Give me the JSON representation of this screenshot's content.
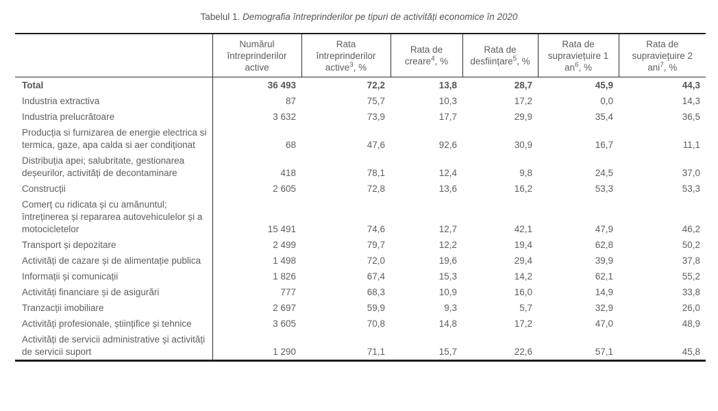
{
  "title": {
    "prefix": "Tabelul 1. ",
    "italic": "Demografia întreprinderilor pe tipuri de activități economice în 2020"
  },
  "table": {
    "corner_label": "",
    "columns": [
      {
        "pre": "Numărul întreprinderilor active",
        "sup": "",
        "post": ""
      },
      {
        "pre": "Rata întreprinderilor active",
        "sup": "3",
        "post": ", %"
      },
      {
        "pre": "Rata de creare",
        "sup": "4",
        "post": ", %"
      },
      {
        "pre": "Rata de desființare",
        "sup": "5",
        "post": ", %"
      },
      {
        "pre": "Rata de supraviețuire 1 an",
        "sup": "6",
        "post": ", %"
      },
      {
        "pre": "Rata de supraviețuire 2 ani",
        "sup": "7",
        "post": ", %"
      }
    ],
    "rows": [
      {
        "label": "Total",
        "bold": true,
        "values": [
          "36 493",
          "72,2",
          "13,8",
          "28,7",
          "45,9",
          "44,3"
        ]
      },
      {
        "label": "Industria extractiva",
        "bold": false,
        "values": [
          "87",
          "75,7",
          "10,3",
          "17,2",
          "0,0",
          "14,3"
        ]
      },
      {
        "label": "Industria prelucrătoare",
        "bold": false,
        "values": [
          "3 632",
          "73,9",
          "17,7",
          "29,9",
          "35,4",
          "36,5"
        ]
      },
      {
        "label": "Producția si furnizarea de energie electrica si termica, gaze, apa calda si aer condiționat",
        "bold": false,
        "values": [
          "68",
          "47,6",
          "92,6",
          "30,9",
          "16,7",
          "11,1"
        ]
      },
      {
        "label": "Distribuția apei; salubritate, gestionarea deșeurilor, activități de decontaminare",
        "bold": false,
        "values": [
          "418",
          "78,1",
          "12,4",
          "9,8",
          "24,5",
          "37,0"
        ]
      },
      {
        "label": "Construcții",
        "bold": false,
        "values": [
          "2 605",
          "72,8",
          "13,6",
          "16,2",
          "53,3",
          "53,3"
        ]
      },
      {
        "label": "Comerț cu ridicata și cu amănuntul; întreținerea și repararea autovehiculelor și a motocicletelor",
        "bold": false,
        "values": [
          "15 491",
          "74,6",
          "12,7",
          "42,1",
          "47,9",
          "46,2"
        ]
      },
      {
        "label": "Transport și depozitare",
        "bold": false,
        "values": [
          "2 499",
          "79,7",
          "12,2",
          "19,4",
          "62,8",
          "50,2"
        ]
      },
      {
        "label": "Activități de cazare și de alimentație publica",
        "bold": false,
        "values": [
          "1 498",
          "72,0",
          "19,6",
          "29,4",
          "39,9",
          "37,8"
        ]
      },
      {
        "label": "Informații și comunicații",
        "bold": false,
        "values": [
          "1 826",
          "67,4",
          "15,3",
          "14,2",
          "62,1",
          "55,2"
        ]
      },
      {
        "label": "Activități financiare și de asigurări",
        "bold": false,
        "values": [
          "777",
          "68,3",
          "10,9",
          "16,0",
          "14,9",
          "33,8"
        ]
      },
      {
        "label": "Tranzacții imobiliare",
        "bold": false,
        "values": [
          "2 697",
          "59,9",
          "9,3",
          "5,7",
          "32,9",
          "26,0"
        ]
      },
      {
        "label": "Activități profesionale, științifice și tehnice",
        "bold": false,
        "values": [
          "3 605",
          "70,8",
          "14,8",
          "17,2",
          "47,0",
          "48,9"
        ]
      },
      {
        "label": "Activități de servicii administrative și activități de servicii suport",
        "bold": false,
        "values": [
          "1 290",
          "71,1",
          "15,7",
          "22,6",
          "57,1",
          "45,8"
        ]
      }
    ]
  }
}
